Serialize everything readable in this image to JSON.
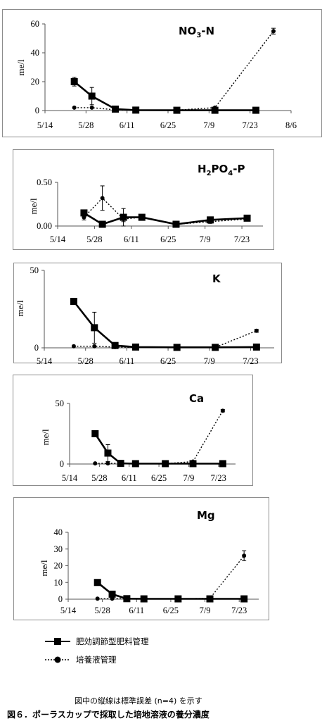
{
  "chart_data": [
    {
      "type": "line",
      "title": "NO3-N",
      "title_parts": [
        "NO",
        "3",
        "-N"
      ],
      "ylabel": "me/l",
      "x_ticks": [
        "5/14",
        "5/28",
        "6/11",
        "6/25",
        "7/9",
        "7/23",
        "8/6"
      ],
      "y_ticks": [
        "0",
        "20",
        "40",
        "60"
      ],
      "ylim": [
        0,
        60
      ],
      "xlim": [
        "5/14",
        "8/6"
      ],
      "series": [
        {
          "style": "solid-square",
          "x": [
            "5/24",
            "5/30",
            "6/7",
            "6/14",
            "6/28",
            "7/11",
            "7/25"
          ],
          "y": [
            20,
            10,
            1,
            0.3,
            0.2,
            0.2,
            0.2
          ],
          "err": [
            3,
            6,
            1,
            0,
            0,
            0,
            0
          ]
        },
        {
          "style": "dotted-circle",
          "x": [
            "5/24",
            "5/30",
            "6/7",
            "6/14",
            "6/28",
            "7/11",
            "7/31"
          ],
          "y": [
            2,
            2,
            0.5,
            0.3,
            0.3,
            2,
            55
          ],
          "err": [
            0,
            0,
            0,
            0,
            0,
            0,
            2
          ]
        }
      ]
    },
    {
      "type": "line",
      "title": "H2PO4-P",
      "title_parts": [
        "H",
        "2",
        "PO",
        "4",
        "-P"
      ],
      "ylabel": "me/l",
      "x_ticks": [
        "5/14",
        "5/28",
        "6/11",
        "6/25",
        "7/9",
        "7/23"
      ],
      "y_ticks": [
        "0.00",
        "0.50"
      ],
      "ylim": [
        0,
        0.5
      ],
      "xlim": [
        "5/14",
        "7/31"
      ],
      "series": [
        {
          "style": "solid-square",
          "x": [
            "5/24",
            "5/31",
            "6/8",
            "6/15",
            "6/28",
            "7/11",
            "7/25"
          ],
          "y": [
            0.15,
            0.02,
            0.1,
            0.1,
            0.02,
            0.07,
            0.09
          ],
          "err": [
            0.03,
            0,
            0.1,
            0.03,
            0,
            0.02,
            0.02
          ]
        },
        {
          "style": "dotted-circle",
          "x": [
            "5/24",
            "5/31",
            "6/8",
            "6/15",
            "6/28",
            "7/11",
            "7/25"
          ],
          "y": [
            0.1,
            0.32,
            0.08,
            0.1,
            0.02,
            0.05,
            0.08
          ],
          "err": [
            0.03,
            0.14,
            0.03,
            0.02,
            0,
            0.02,
            0.02
          ]
        }
      ]
    },
    {
      "type": "line",
      "title": "K",
      "title_parts": [
        "K"
      ],
      "ylabel": "me/l",
      "x_ticks": [
        "5/14",
        "5/28",
        "6/11",
        "6/25",
        "7/9",
        "7/23"
      ],
      "y_ticks": [
        "0",
        "50"
      ],
      "ylim": [
        0,
        50
      ],
      "xlim": [
        "5/14",
        "7/31"
      ],
      "series": [
        {
          "style": "solid-square",
          "x": [
            "5/24",
            "5/31",
            "6/7",
            "6/14",
            "6/28",
            "7/11",
            "7/25"
          ],
          "y": [
            30,
            13,
            1.5,
            0.5,
            0.3,
            0.3,
            0.5
          ],
          "err": [
            0,
            10,
            0,
            0,
            0,
            0,
            0
          ]
        },
        {
          "style": "dotted-circle",
          "x": [
            "5/24",
            "5/31",
            "6/7",
            "6/14",
            "6/28",
            "7/11",
            "7/25"
          ],
          "y": [
            1,
            1,
            0.5,
            0.3,
            0.3,
            0.3,
            11
          ],
          "err": [
            0,
            0,
            0,
            0,
            0,
            0,
            1
          ]
        }
      ]
    },
    {
      "type": "line",
      "title": "Ca",
      "title_parts": [
        "Ca"
      ],
      "ylabel": "me/l",
      "x_ticks": [
        "5/14",
        "5/28",
        "6/11",
        "6/25",
        "7/9",
        "7/23"
      ],
      "y_ticks": [
        "0",
        "50"
      ],
      "ylim": [
        0,
        50
      ],
      "xlim": [
        "5/14",
        "7/31"
      ],
      "series": [
        {
          "style": "solid-square",
          "x": [
            "5/26",
            "6/1",
            "6/7",
            "6/14",
            "6/28",
            "7/11",
            "7/25"
          ],
          "y": [
            25,
            9,
            0.5,
            0.3,
            0.3,
            0.3,
            0.3
          ],
          "err": [
            0,
            7,
            0,
            0,
            0,
            0,
            0
          ]
        },
        {
          "style": "dotted-circle",
          "x": [
            "5/26",
            "6/1",
            "6/7",
            "6/14",
            "6/28",
            "7/11",
            "7/25"
          ],
          "y": [
            0.5,
            0.5,
            0.5,
            0.3,
            0.3,
            2,
            44
          ],
          "err": [
            0,
            0,
            0,
            0,
            0,
            0,
            1
          ]
        }
      ]
    },
    {
      "type": "line",
      "title": "Mg",
      "title_parts": [
        "Mg"
      ],
      "ylabel": "me/l",
      "x_ticks": [
        "5/14",
        "5/28",
        "6/11",
        "6/25",
        "7/9",
        "7/23"
      ],
      "y_ticks": [
        "0",
        "10",
        "20",
        "30",
        "40"
      ],
      "ylim": [
        0,
        40
      ],
      "xlim": [
        "5/14",
        "7/31"
      ],
      "series": [
        {
          "style": "solid-square",
          "x": [
            "5/26",
            "6/1",
            "6/7",
            "6/14",
            "6/28",
            "7/11",
            "7/25"
          ],
          "y": [
            10,
            3,
            0.3,
            0.2,
            0.2,
            0.2,
            0.2
          ],
          "err": [
            0,
            0,
            0,
            0,
            0,
            0,
            0
          ]
        },
        {
          "style": "dotted-circle",
          "x": [
            "5/26",
            "6/1",
            "6/7",
            "6/14",
            "6/28",
            "7/11",
            "7/25"
          ],
          "y": [
            0.3,
            0.3,
            0.3,
            0.2,
            0.2,
            0.5,
            26
          ],
          "err": [
            0,
            0,
            0,
            0,
            0,
            0,
            3
          ]
        }
      ]
    }
  ],
  "legend": [
    {
      "style": "solid-square",
      "label": "肥効調節型肥料管理"
    },
    {
      "style": "dotted-circle",
      "label": "培養液管理"
    }
  ],
  "note": "図中の縦線は標準誤差 (n=4) を示す",
  "caption": "図６．ポーラスカップで採取した培地溶液の養分濃度"
}
